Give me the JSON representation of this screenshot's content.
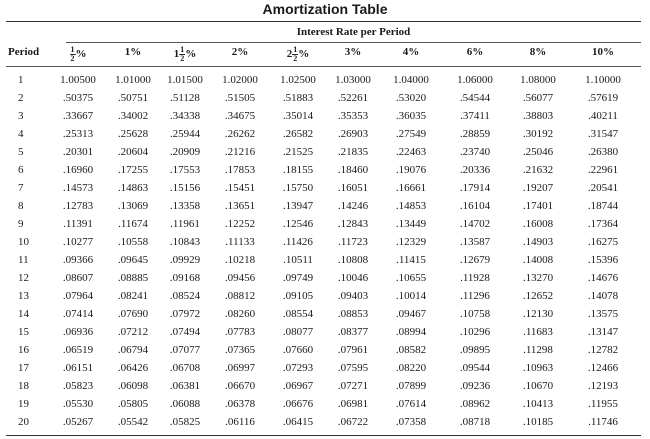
{
  "title": "Amortization Table",
  "subtitle": "Interest Rate per Period",
  "headers": [
    {
      "key": "period",
      "label": "Period"
    },
    {
      "key": "r050",
      "prefix": "",
      "num": "1",
      "den": "2",
      "suffix": "%"
    },
    {
      "key": "r100",
      "label": "1%"
    },
    {
      "key": "r150",
      "prefix": "1",
      "num": "1",
      "den": "2",
      "suffix": "%"
    },
    {
      "key": "r200",
      "label": "2%"
    },
    {
      "key": "r250",
      "prefix": "2",
      "num": "1",
      "den": "2",
      "suffix": "%"
    },
    {
      "key": "r300",
      "label": "3%"
    },
    {
      "key": "r400",
      "label": "4%"
    },
    {
      "key": "r600",
      "label": "6%"
    },
    {
      "key": "r800",
      "label": "8%"
    },
    {
      "key": "r1000",
      "label": "10%"
    }
  ],
  "rows": [
    [
      "1",
      "1.00500",
      "1.01000",
      "1.01500",
      "1.02000",
      "1.02500",
      "1.03000",
      "1.04000",
      "1.06000",
      "1.08000",
      "1.10000"
    ],
    [
      "2",
      ".50375",
      ".50751",
      ".51128",
      ".51505",
      ".51883",
      ".52261",
      ".53020",
      ".54544",
      ".56077",
      ".57619"
    ],
    [
      "3",
      ".33667",
      ".34002",
      ".34338",
      ".34675",
      ".35014",
      ".35353",
      ".36035",
      ".37411",
      ".38803",
      ".40211"
    ],
    [
      "4",
      ".25313",
      ".25628",
      ".25944",
      ".26262",
      ".26582",
      ".26903",
      ".27549",
      ".28859",
      ".30192",
      ".31547"
    ],
    [
      "5",
      ".20301",
      ".20604",
      ".20909",
      ".21216",
      ".21525",
      ".21835",
      ".22463",
      ".23740",
      ".25046",
      ".26380"
    ],
    [
      "6",
      ".16960",
      ".17255",
      ".17553",
      ".17853",
      ".18155",
      ".18460",
      ".19076",
      ".20336",
      ".21632",
      ".22961"
    ],
    [
      "7",
      ".14573",
      ".14863",
      ".15156",
      ".15451",
      ".15750",
      ".16051",
      ".16661",
      ".17914",
      ".19207",
      ".20541"
    ],
    [
      "8",
      ".12783",
      ".13069",
      ".13358",
      ".13651",
      ".13947",
      ".14246",
      ".14853",
      ".16104",
      ".17401",
      ".18744"
    ],
    [
      "9",
      ".11391",
      ".11674",
      ".11961",
      ".12252",
      ".12546",
      ".12843",
      ".13449",
      ".14702",
      ".16008",
      ".17364"
    ],
    [
      "10",
      ".10277",
      ".10558",
      ".10843",
      ".11133",
      ".11426",
      ".11723",
      ".12329",
      ".13587",
      ".14903",
      ".16275"
    ],
    [
      "11",
      ".09366",
      ".09645",
      ".09929",
      ".10218",
      ".10511",
      ".10808",
      ".11415",
      ".12679",
      ".14008",
      ".15396"
    ],
    [
      "12",
      ".08607",
      ".08885",
      ".09168",
      ".09456",
      ".09749",
      ".10046",
      ".10655",
      ".11928",
      ".13270",
      ".14676"
    ],
    [
      "13",
      ".07964",
      ".08241",
      ".08524",
      ".08812",
      ".09105",
      ".09403",
      ".10014",
      ".11296",
      ".12652",
      ".14078"
    ],
    [
      "14",
      ".07414",
      ".07690",
      ".07972",
      ".08260",
      ".08554",
      ".08853",
      ".09467",
      ".10758",
      ".12130",
      ".13575"
    ],
    [
      "15",
      ".06936",
      ".07212",
      ".07494",
      ".07783",
      ".08077",
      ".08377",
      ".08994",
      ".10296",
      ".11683",
      ".13147"
    ],
    [
      "16",
      ".06519",
      ".06794",
      ".07077",
      ".07365",
      ".07660",
      ".07961",
      ".08582",
      ".09895",
      ".11298",
      ".12782"
    ],
    [
      "17",
      ".06151",
      ".06426",
      ".06708",
      ".06997",
      ".07293",
      ".07595",
      ".08220",
      ".09544",
      ".10963",
      ".12466"
    ],
    [
      "18",
      ".05823",
      ".06098",
      ".06381",
      ".06670",
      ".06967",
      ".07271",
      ".07899",
      ".09236",
      ".10670",
      ".12193"
    ],
    [
      "19",
      ".05530",
      ".05805",
      ".06088",
      ".06378",
      ".06676",
      ".06981",
      ".07614",
      ".08962",
      ".10413",
      ".11955"
    ],
    [
      "20",
      ".05267",
      ".05542",
      ".05825",
      ".06116",
      ".06415",
      ".06722",
      ".07358",
      ".08718",
      ".10185",
      ".11746"
    ]
  ]
}
